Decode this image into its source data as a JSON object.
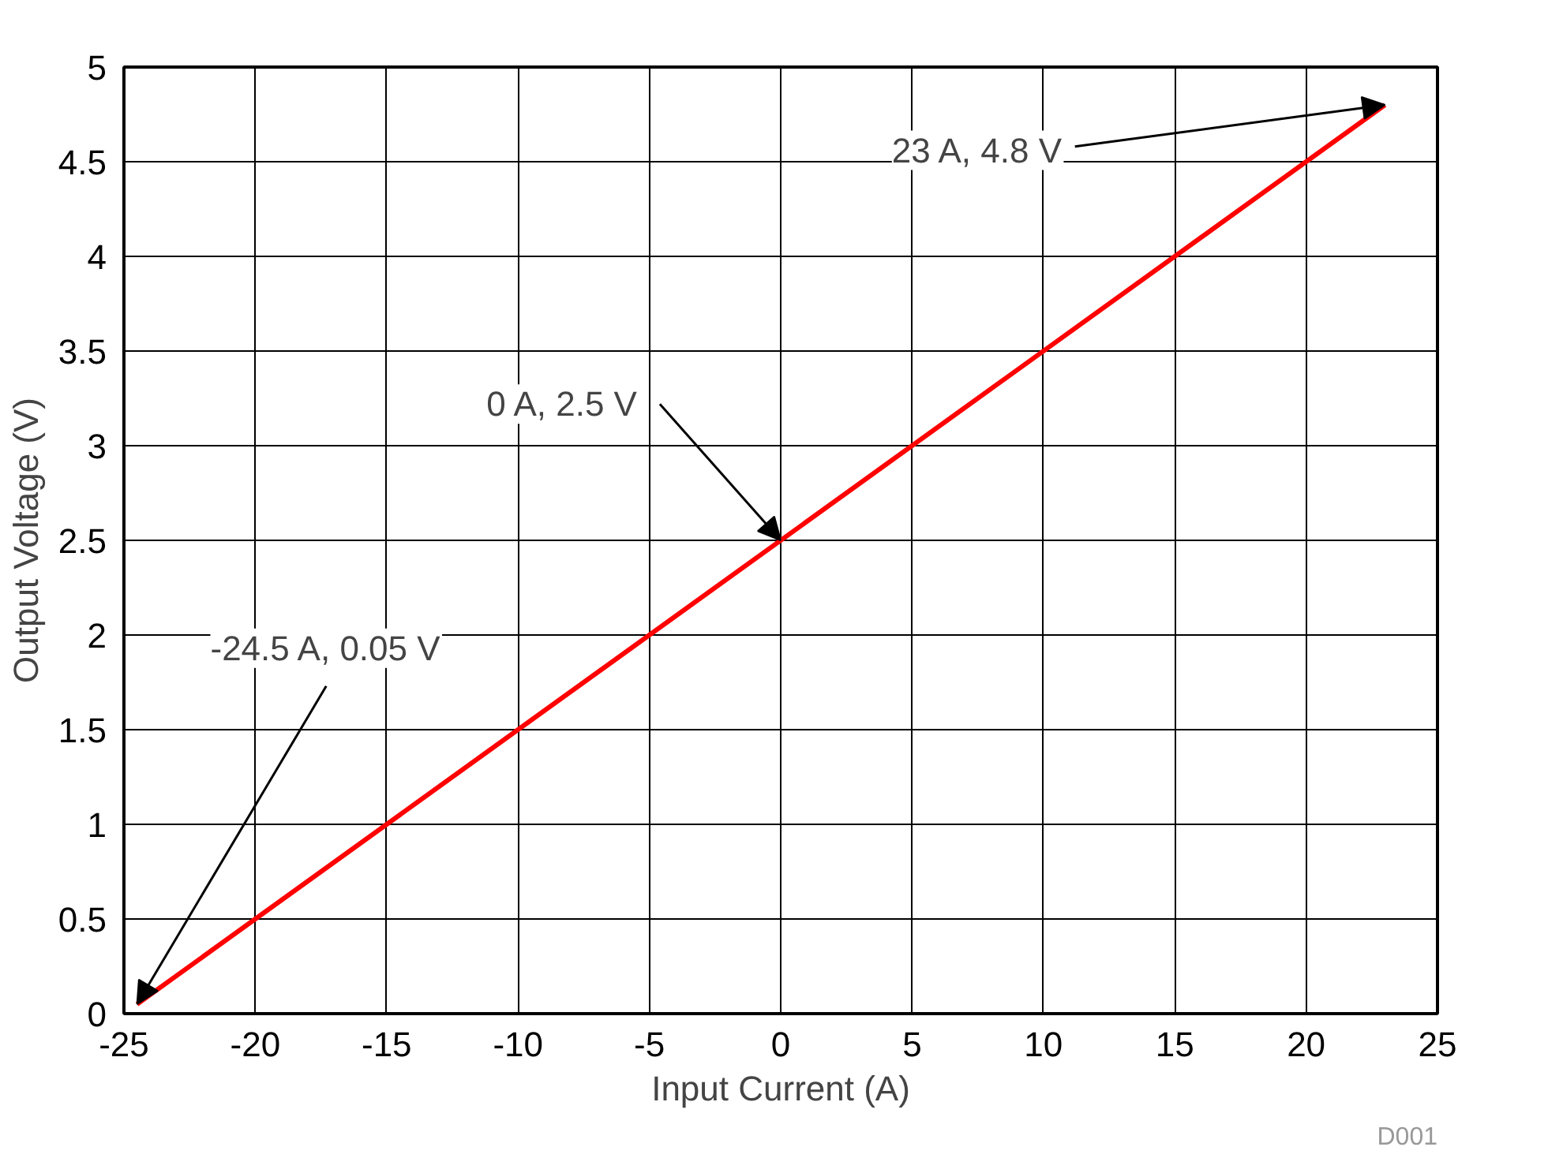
{
  "chart_data": {
    "type": "line",
    "xlabel": "Input Current (A)",
    "ylabel": "Output Voltage (V)",
    "series": [
      {
        "color": "#ff0000",
        "x": [
          -24.5,
          23
        ],
        "values": [
          0.05,
          4.8
        ]
      }
    ],
    "xlim": [
      -25,
      25
    ],
    "ylim": [
      0,
      5
    ],
    "xticks": [
      -25,
      -20,
      -15,
      -10,
      -5,
      0,
      5,
      10,
      15,
      20,
      25
    ],
    "yticks": [
      0,
      0.5,
      1,
      1.5,
      2,
      2.5,
      3,
      3.5,
      4,
      4.5,
      5
    ],
    "grid": true,
    "marker": "none",
    "line_style": "solid",
    "annotations": [
      {
        "text": "-24.5 A, 0.05 V",
        "x": -24.5,
        "y": 0.05
      },
      {
        "text": "0 A, 2.5 V",
        "x": 0,
        "y": 2.5
      },
      {
        "text": "23 A, 4.8 V",
        "x": 23,
        "y": 4.8
      },
      "D001"
    ]
  }
}
